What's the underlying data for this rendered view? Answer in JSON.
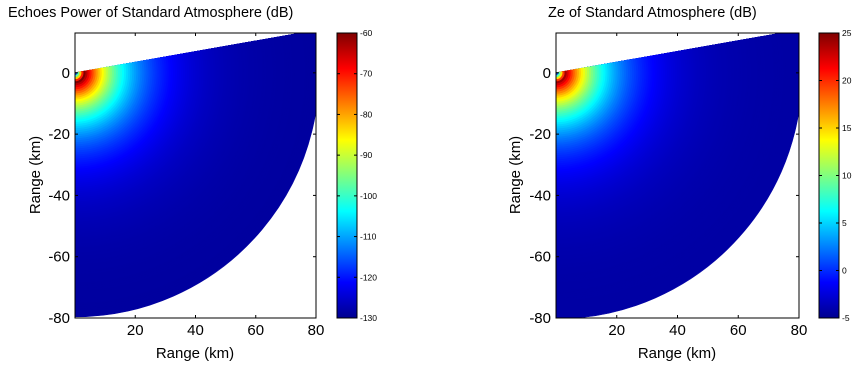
{
  "chart_data": [
    {
      "type": "heatmap",
      "title": "Echoes Power of Standard Atmosphere (dB)",
      "xlabel": "Range (km)",
      "ylabel": "Range (km)",
      "xlim": [
        0,
        80
      ],
      "ylim": [
        -80,
        13
      ],
      "x_ticks": [
        "20",
        "40",
        "60",
        "80"
      ],
      "y_ticks": [
        "0",
        "-20",
        "-40",
        "-60",
        "-80"
      ],
      "sector_deg": [
        -90,
        10
      ],
      "max_range_km": 81,
      "colormap": "jet",
      "colorbar": {
        "min": -130,
        "max": -60,
        "ticks": [
          "-60",
          "-70",
          "-80",
          "-90",
          "-100",
          "-110",
          "-120",
          "-130"
        ]
      },
      "profile": {
        "peak_range_km": 3,
        "peak_value": -60,
        "near_value": -130,
        "floor_value": -128
      }
    },
    {
      "type": "heatmap",
      "title": "Ze of Standard Atmosphere (dB)",
      "xlabel": "Range (km)",
      "ylabel": "Range (km)",
      "xlim": [
        0,
        80
      ],
      "ylim": [
        -80,
        13
      ],
      "x_ticks": [
        "20",
        "40",
        "60",
        "80"
      ],
      "y_ticks": [
        "0",
        "-20",
        "-40",
        "-60",
        "-80"
      ],
      "sector_deg": [
        -90,
        10
      ],
      "max_range_km": 81,
      "colormap": "jet",
      "colorbar": {
        "min": -5,
        "max": 25,
        "ticks": [
          "25",
          "20",
          "15",
          "10",
          "5",
          "0",
          "-5"
        ]
      },
      "profile": {
        "peak_range_km": 3,
        "peak_value": 24,
        "near_value": -5,
        "floor_value": -4
      }
    }
  ]
}
